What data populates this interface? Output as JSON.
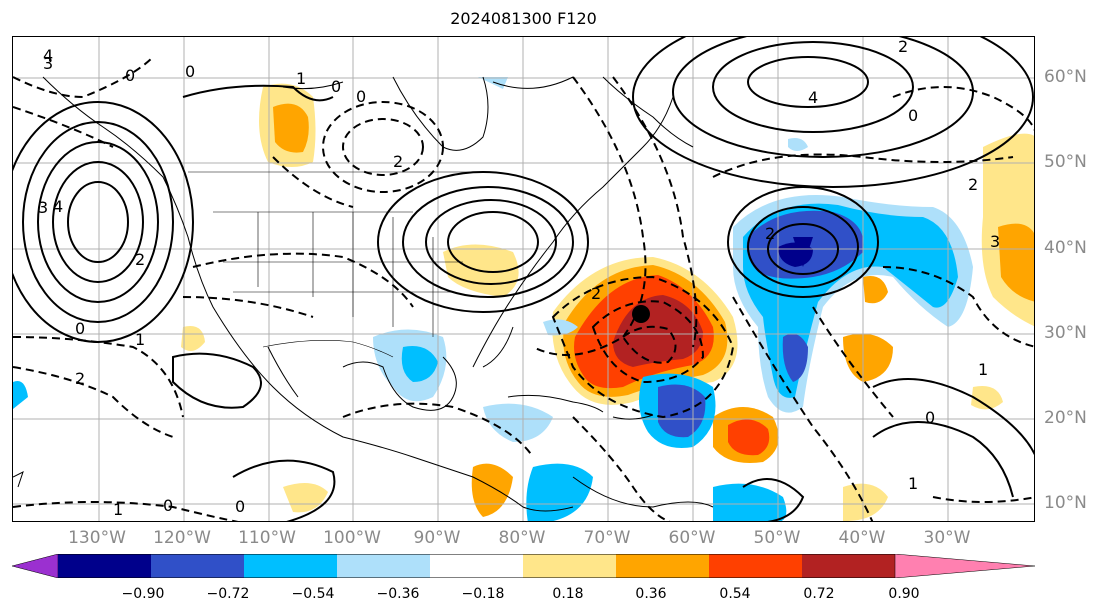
{
  "title": "2024081300 F120",
  "lon_labels": [
    "130°W",
    "120°W",
    "110°W",
    "100°W",
    "90°W",
    "80°W",
    "70°W",
    "60°W",
    "50°W",
    "40°W",
    "30°W"
  ],
  "lat_labels": [
    "60°N",
    "50°N",
    "40°N",
    "30°N",
    "20°N",
    "10°N"
  ],
  "colorbar": {
    "ticks": [
      "−0.90",
      "−0.72",
      "−0.54",
      "−0.36",
      "−0.18",
      "0.18",
      "0.36",
      "0.54",
      "0.72",
      "0.90"
    ],
    "colors": [
      "#9b30d0",
      "#00008b",
      "#3050c8",
      "#00bfff",
      "#aee0fa",
      "#ffffff",
      "#ffe68a",
      "#ffa500",
      "#ff4000",
      "#b22222",
      "#ff80b0"
    ]
  },
  "contour_labels": [
    "1",
    "0",
    "0",
    "0",
    "4",
    "2",
    "3",
    "4",
    "2",
    "0",
    "0",
    "2",
    "2",
    "1",
    "0",
    "2",
    "1",
    "0",
    "2",
    "3",
    "1",
    "0",
    "4",
    "3",
    "2",
    "0",
    "1"
  ],
  "marker": "storm-center-dot"
}
